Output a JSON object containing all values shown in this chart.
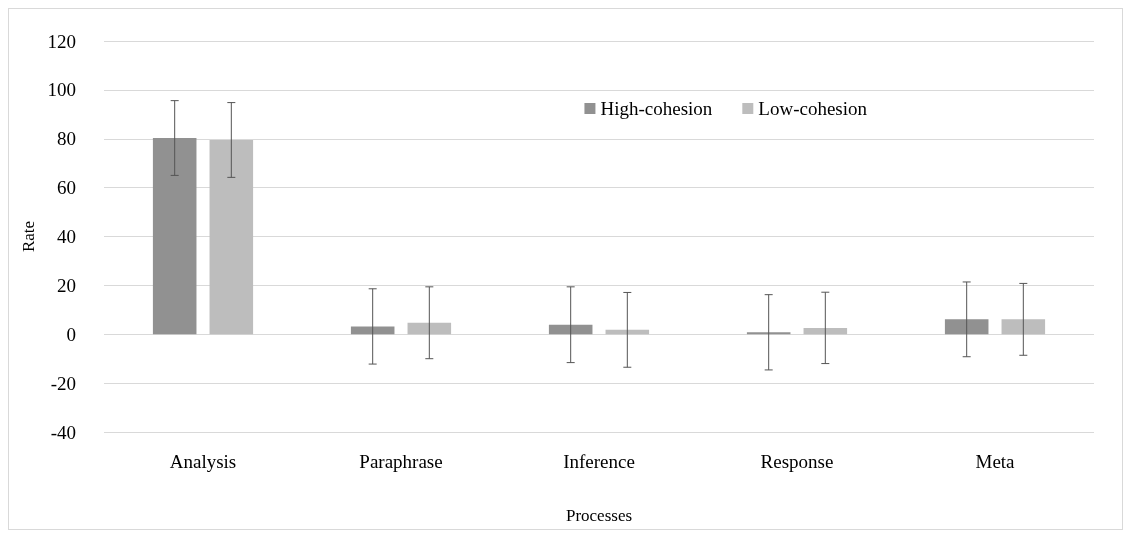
{
  "chart_data": {
    "type": "bar",
    "xlabel": "Processes",
    "ylabel": "Rate",
    "categories": [
      "Analysis",
      "Paraphrase",
      "Inference",
      "Response",
      "Meta"
    ],
    "series": [
      {
        "name": "High-cohesion",
        "color": "#919191",
        "values": [
          80.3,
          3.2,
          3.9,
          0.8,
          6.1
        ],
        "errors": [
          15.3,
          15.4,
          15.5,
          15.4,
          15.3
        ]
      },
      {
        "name": "Low-cohesion",
        "color": "#bdbdbd",
        "values": [
          79.5,
          4.7,
          1.8,
          2.6,
          6.1
        ],
        "errors": [
          15.3,
          14.7,
          15.3,
          14.6,
          14.7
        ]
      }
    ],
    "ylim": [
      -40,
      120
    ],
    "yticks": [
      -40,
      -20,
      0,
      20,
      40,
      60,
      80,
      100,
      120
    ],
    "grid": "y",
    "legend": "top right"
  }
}
